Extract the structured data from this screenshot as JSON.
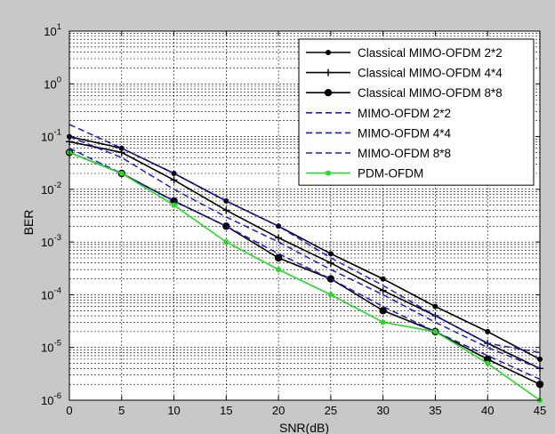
{
  "chart_data": {
    "type": "line",
    "title": "",
    "xlabel": "SNR(dB)",
    "ylabel": "BER",
    "x_scale": "linear",
    "y_scale": "log",
    "xlim": [
      0,
      45
    ],
    "ylim": [
      1e-06,
      10
    ],
    "x_ticks": [
      "0",
      "5",
      "10",
      "15",
      "20",
      "25",
      "30",
      "35",
      "40",
      "45"
    ],
    "y_ticks": [
      "10",
      "10",
      "10",
      "10",
      "10",
      "10",
      "10",
      "10"
    ],
    "y_tick_exponents": [
      "-6",
      "-5",
      "-4",
      "-3",
      "-2",
      "-1",
      "0",
      "1"
    ],
    "grid": true,
    "legend_position": "top-right",
    "x": [
      0,
      5,
      10,
      15,
      20,
      25,
      30,
      35,
      40,
      45
    ],
    "series": [
      {
        "name": "Classical MIMO-OFDM 2*2",
        "color": "#000000",
        "dash": "solid",
        "marker": "dot",
        "values": [
          0.1,
          0.06,
          0.02,
          0.006,
          0.002,
          0.0006,
          0.0002,
          6e-05,
          2e-05,
          6e-06
        ]
      },
      {
        "name": "Classical MIMO-OFDM 4*4",
        "color": "#000000",
        "dash": "solid",
        "marker": "plus",
        "values": [
          0.08,
          0.05,
          0.015,
          0.004,
          0.0012,
          0.0004,
          0.00012,
          4e-05,
          1.2e-05,
          4e-06
        ]
      },
      {
        "name": "Classical MIMO-OFDM 8*8",
        "color": "#000000",
        "dash": "solid",
        "marker": "bigdot",
        "values": [
          0.05,
          0.02,
          0.006,
          0.002,
          0.0005,
          0.0002,
          5e-05,
          2e-05,
          6e-06,
          2e-06
        ]
      },
      {
        "name": "MIMO-OFDM 2*2",
        "color": "#1a1adc",
        "dash": "dashed",
        "marker": "none",
        "values": [
          0.17,
          0.06,
          0.02,
          0.006,
          0.002,
          0.0005,
          0.00015,
          4e-05,
          1.2e-05,
          8e-06
        ]
      },
      {
        "name": "MIMO-OFDM 4*4",
        "color": "#1a1adc",
        "dash": "dashed",
        "marker": "none",
        "values": [
          0.1,
          0.04,
          0.01,
          0.003,
          0.001,
          0.0003,
          0.0001,
          3e-05,
          1e-05,
          4e-06
        ]
      },
      {
        "name": "MIMO-OFDM 8*8",
        "color": "#1a1adc",
        "dash": "dashed",
        "marker": "none",
        "values": [
          0.06,
          0.02,
          0.006,
          0.002,
          0.0006,
          0.0002,
          6e-05,
          2e-05,
          7e-06,
          2.5e-06
        ]
      },
      {
        "name": "PDM-OFDM",
        "color": "#22dd22",
        "dash": "solid",
        "marker": "dot",
        "values": [
          0.05,
          0.02,
          0.005,
          0.001,
          0.0003,
          0.0001,
          3e-05,
          2e-05,
          5e-06,
          1e-06
        ]
      }
    ]
  }
}
